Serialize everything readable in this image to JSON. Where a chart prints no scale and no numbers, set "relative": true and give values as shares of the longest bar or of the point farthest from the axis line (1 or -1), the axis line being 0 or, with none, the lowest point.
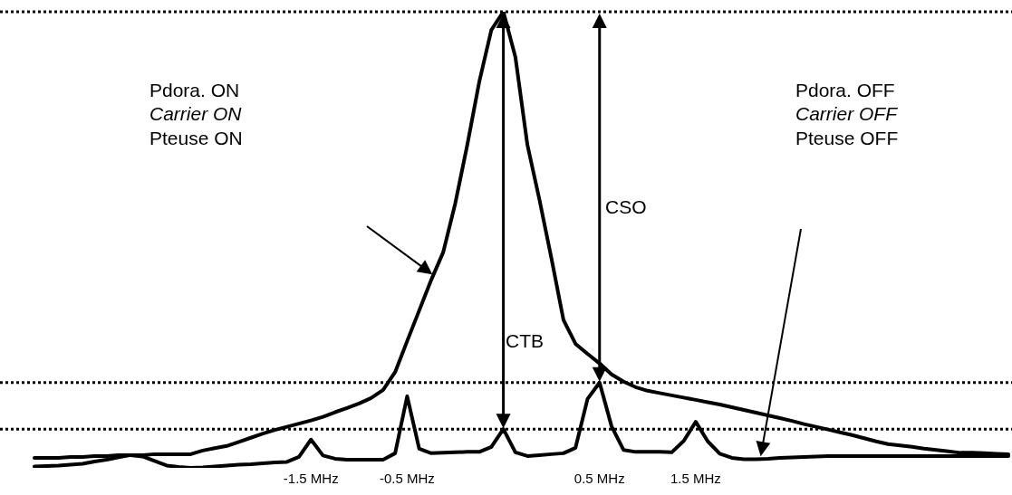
{
  "chart_data": {
    "type": "line",
    "relative": true,
    "marker": "none",
    "line_style": "solid",
    "grid": false,
    "legend": false,
    "tick_labels": "x",
    "categories": [
      null,
      null,
      null,
      null,
      null,
      null,
      null,
      null,
      null,
      null,
      null,
      null,
      null,
      null,
      null,
      null,
      null,
      null,
      null,
      null,
      null,
      null,
      null,
      "-1.5 MHz",
      null,
      null,
      null,
      null,
      null,
      null,
      null,
      "-0.5 MHz",
      null,
      null,
      null,
      null,
      null,
      null,
      null,
      null,
      null,
      null,
      null,
      null,
      null,
      null,
      null,
      "0.5 MHz",
      null,
      null,
      null,
      null,
      null,
      null,
      null,
      "1.5 MHz",
      null,
      null,
      null,
      null,
      null,
      null,
      null,
      null,
      null,
      null,
      null,
      null,
      null,
      null,
      null,
      null,
      null,
      null,
      null,
      null,
      null,
      null,
      null,
      null,
      null,
      null
    ],
    "series": [
      {
        "color": "#000000",
        "values": [
          0.022,
          0.022,
          0.022,
          0.024,
          0.024,
          0.026,
          0.026,
          0.028,
          0.028,
          0.028,
          0.03,
          0.03,
          0.03,
          0.03,
          0.038,
          0.043,
          0.048,
          0.057,
          0.066,
          0.075,
          0.083,
          0.09,
          0.097,
          0.104,
          0.112,
          0.122,
          0.131,
          0.141,
          0.153,
          0.171,
          0.21,
          0.278,
          0.345,
          0.412,
          0.473,
          0.58,
          0.708,
          0.847,
          0.96,
          1,
          0.901,
          0.708,
          0.588,
          0.459,
          0.324,
          0.272,
          0.25,
          0.229,
          0.205,
          0.189,
          0.177,
          0.169,
          0.164,
          0.159,
          0.154,
          0.149,
          0.144,
          0.139,
          0.133,
          0.127,
          0.121,
          0.115,
          0.109,
          0.103,
          0.096,
          0.09,
          0.084,
          0.078,
          0.072,
          0.065,
          0.058,
          0.052,
          0.049,
          0.046,
          0.042,
          0.039,
          0.036,
          0.033,
          0.033,
          0.032,
          0.031,
          0.03
        ]
      },
      {
        "color": "#000000",
        "values": [
          0.003,
          0.004,
          0.005,
          0.007,
          0.009,
          0.014,
          0.018,
          0.023,
          0.028,
          0.025,
          0.015,
          0.005,
          0.002,
          0,
          0.001,
          0.003,
          0.005,
          0.007,
          0.008,
          0.01,
          0.012,
          0.013,
          0.024,
          0.062,
          0.027,
          0.02,
          0.018,
          0.018,
          0.018,
          0.018,
          0.032,
          0.157,
          0.042,
          0.032,
          0.033,
          0.034,
          0.035,
          0.035,
          0.046,
          0.085,
          0.034,
          0.026,
          0.028,
          0.03,
          0.032,
          0.044,
          0.151,
          0.187,
          0.091,
          0.039,
          0.035,
          0.035,
          0.035,
          0.034,
          0.059,
          0.101,
          0.058,
          0.031,
          0.022,
          0.019,
          0.019,
          0.02,
          0.022,
          0.023,
          0.024,
          0.025,
          0.026,
          0.026,
          0.026,
          0.026,
          0.026,
          0.026,
          0.026,
          0.026,
          0.026,
          0.026,
          0.026,
          0.026,
          0.026,
          0.026,
          0.026,
          0.026
        ]
      }
    ],
    "ref_lines": [
      {
        "axis": "y",
        "value": 1.0,
        "color": "#000000",
        "line_style": "dotted"
      },
      {
        "axis": "y",
        "value": 0.187,
        "color": "#000000",
        "line_style": "dotted"
      },
      {
        "axis": "y",
        "value": 0.085,
        "color": "#000000",
        "line_style": "dotted"
      }
    ],
    "annotations": [
      "Pdora. ON",
      "Carrier ON",
      "Pteuse ON",
      "Pdora. OFF",
      "Carrier OFF",
      "Pteuse OFF",
      "CSO",
      "CTB"
    ]
  }
}
